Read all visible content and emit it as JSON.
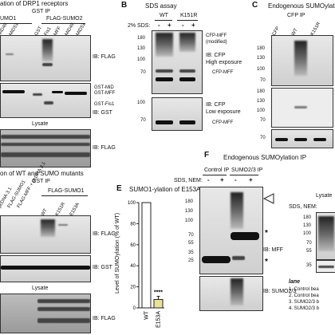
{
  "panels": {
    "A": {
      "title": "ation of DRP1 receptors",
      "sub": "GST IP",
      "hdr1": "UMO1",
      "hdr2": "FLAG-SUMO2",
      "lanes": [
        "MiD49",
        "MiD51",
        "GST",
        "Fis1",
        "MFF",
        "MiD49",
        "MiD51"
      ],
      "ib1": "IB: FLAG",
      "ib2": "IB: GST",
      "lysate": "Lysate",
      "ib3": "IB: FLAG",
      "bands": [
        "GST-MiD",
        "GST-MFF",
        "GST-Fis1"
      ]
    },
    "B": {
      "letter": "B",
      "title": "SDS assay",
      "sds": "2% SDS:",
      "wt": "WT",
      "mut": "K151R",
      "signs": [
        "-",
        "+",
        "-",
        "+"
      ],
      "note1": "CFP-MFF",
      "note2": "(modified)",
      "ib1a": "IB: CFP",
      "ib1b": "High exposure",
      "band1": "CFP-MFF",
      "ib2a": "IB: CFP",
      "ib2b": "Low exposure",
      "band2": "CFP-MFF",
      "mw_top": [
        "180",
        "130",
        "100",
        "70"
      ],
      "mw_bot": [
        "100",
        "70"
      ]
    },
    "C": {
      "letter": "C",
      "title": "Endogenous SUMOylati",
      "sub": "CFP IP",
      "lanes": [
        "CFP",
        "WT",
        "K151R"
      ],
      "mw_top": [
        "180",
        "130",
        "100",
        "70"
      ],
      "mw_mid": [
        "180",
        "130",
        "100",
        "70"
      ],
      "mw_bot": [
        "70"
      ]
    },
    "D": {
      "title": "on of WT and SUMO mutants",
      "sub": "GST IP",
      "lanes": [
        "pcDNA 3.1",
        "FLAG-SUMO1",
        "FLAG-MFF + pcDNA 3.1",
        "WT",
        "K151R",
        "E153A"
      ],
      "hdr": "FLAG-SUMO1",
      "ib1": "IB: FLAG",
      "ib2": "IB: GST",
      "lysate": "Lysate",
      "ib3": "IB: FLAG"
    },
    "E": {
      "letter": "E",
      "title": "SUMO1-ylation of E153A",
      "ylabel": "Level of SUMOylation (% of WT)",
      "stars": "****",
      "categories": [
        "WT",
        "E153A"
      ]
    },
    "F": {
      "letter": "F",
      "title": "Endogenous SUMOylation IP",
      "h1": "Control IP",
      "h2": "SUMO2/3 IP",
      "sdsnem": "SDS, NEM:",
      "signs": [
        "-",
        "+",
        "-",
        "+"
      ],
      "mw": [
        "180",
        "130",
        "100",
        "70",
        "55",
        "35",
        "25"
      ],
      "ib1": "IB: MFF",
      "ib2": "IB: SUMO2/3",
      "star": "*",
      "lysate": "Lysate",
      "sdsnem2": "SDS, NEM:",
      "mw2": [
        "180",
        "130",
        "100",
        "70",
        "55",
        "35"
      ],
      "lane_title": "lane",
      "legend": [
        "1.  Control bea",
        "2.  Control bea",
        "3.  SUMO2/3 b",
        "4.  SUMO2/3 b"
      ]
    }
  },
  "chart_data": {
    "type": "bar",
    "title": "SUMO1-ylation of E153A",
    "categories": [
      "WT",
      "E153A"
    ],
    "values": [
      100,
      8
    ],
    "errors": [
      0,
      3
    ],
    "ylabel": "Level of SUMOylation (% of WT)",
    "ylim": [
      0,
      100
    ],
    "yticks": [
      0,
      20,
      40,
      60,
      80,
      100
    ],
    "annotation": "****"
  }
}
